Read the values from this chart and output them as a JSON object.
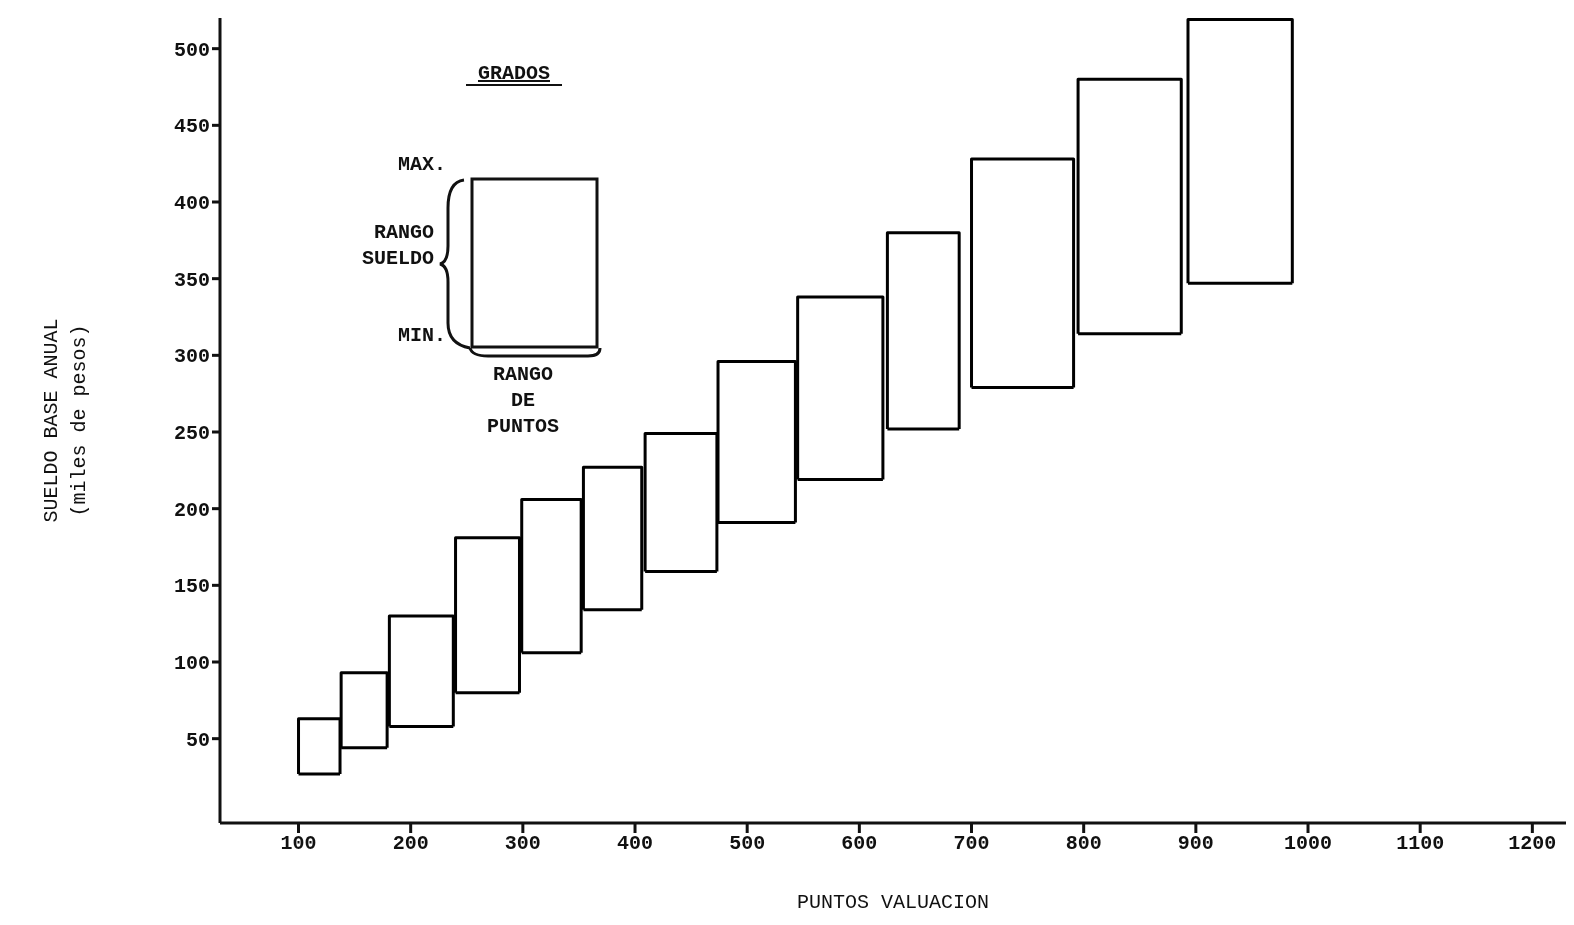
{
  "chart_data": {
    "type": "line",
    "xlabel": "PUNTOS VALUACION",
    "ylabel": "SUELDO BASE ANUAL\n(miles de pesos)",
    "annotations": [
      "GRADOS",
      "MAX.",
      "RANGO\nSUELDO",
      "MIN.",
      "RANGO\nDE\nPUNTOS"
    ],
    "xlim": [
      30,
      1230
    ],
    "ylim": [
      -5,
      520
    ],
    "xticks": [
      100,
      200,
      300,
      400,
      500,
      600,
      700,
      800,
      900,
      1000,
      1100,
      1200
    ],
    "yticks": [
      50,
      100,
      150,
      200,
      250,
      300,
      350,
      400,
      450,
      500
    ],
    "marker": "none",
    "line_style": "solid",
    "series": [
      {
        "color": "#000000",
        "x": [
          100,
          100,
          137,
          137
        ],
        "values": [
          27,
          63,
          63,
          27
        ]
      },
      {
        "color": "#000000",
        "x": [
          100,
          137
        ],
        "values": [
          27,
          27
        ]
      },
      {
        "color": "#000000",
        "x": [
          138,
          138,
          179,
          179
        ],
        "values": [
          44,
          93,
          93,
          44
        ]
      },
      {
        "color": "#000000",
        "x": [
          138,
          179
        ],
        "values": [
          44,
          44
        ]
      },
      {
        "color": "#000000",
        "x": [
          181,
          181,
          238,
          238
        ],
        "values": [
          58,
          130,
          130,
          58
        ]
      },
      {
        "color": "#000000",
        "x": [
          181,
          238
        ],
        "values": [
          58,
          58
        ]
      },
      {
        "color": "#000000",
        "x": [
          240,
          240,
          297,
          297
        ],
        "values": [
          80,
          181,
          181,
          80
        ]
      },
      {
        "color": "#000000",
        "x": [
          240,
          297
        ],
        "values": [
          80,
          80
        ]
      },
      {
        "color": "#000000",
        "x": [
          299,
          299,
          352,
          352
        ],
        "values": [
          106,
          206,
          206,
          106
        ]
      },
      {
        "color": "#000000",
        "x": [
          299,
          352
        ],
        "values": [
          106,
          106
        ]
      },
      {
        "color": "#000000",
        "x": [
          354,
          354,
          406,
          406
        ],
        "values": [
          134,
          227,
          227,
          134
        ]
      },
      {
        "color": "#000000",
        "x": [
          354,
          406
        ],
        "values": [
          134,
          134
        ]
      },
      {
        "color": "#000000",
        "x": [
          409,
          409,
          473,
          473
        ],
        "values": [
          159,
          249,
          249,
          159
        ]
      },
      {
        "color": "#000000",
        "x": [
          409,
          473
        ],
        "values": [
          159,
          159
        ]
      },
      {
        "color": "#000000",
        "x": [
          474,
          474,
          543,
          543
        ],
        "values": [
          191,
          296,
          296,
          191
        ]
      },
      {
        "color": "#000000",
        "x": [
          474,
          543
        ],
        "values": [
          191,
          191
        ]
      },
      {
        "color": "#000000",
        "x": [
          545,
          545,
          621,
          621
        ],
        "values": [
          219,
          338,
          338,
          219
        ]
      },
      {
        "color": "#000000",
        "x": [
          545,
          621
        ],
        "values": [
          219,
          219
        ]
      },
      {
        "color": "#000000",
        "x": [
          625,
          625,
          689,
          689
        ],
        "values": [
          252,
          380,
          380,
          252
        ]
      },
      {
        "color": "#000000",
        "x": [
          625,
          689
        ],
        "values": [
          252,
          252
        ]
      },
      {
        "color": "#000000",
        "x": [
          700,
          700,
          791,
          791
        ],
        "values": [
          279,
          428,
          428,
          279
        ]
      },
      {
        "color": "#000000",
        "x": [
          700,
          791
        ],
        "values": [
          279,
          279
        ]
      },
      {
        "color": "#000000",
        "x": [
          795,
          795,
          887,
          887
        ],
        "values": [
          314,
          480,
          480,
          314
        ]
      },
      {
        "color": "#000000",
        "x": [
          795,
          887
        ],
        "values": [
          314,
          314
        ]
      },
      {
        "color": "#000000",
        "x": [
          893,
          893,
          986,
          986
        ],
        "values": [
          347,
          519,
          519,
          347
        ]
      },
      {
        "color": "#000000",
        "x": [
          893,
          986
        ],
        "values": [
          347,
          347
        ]
      }
    ]
  }
}
